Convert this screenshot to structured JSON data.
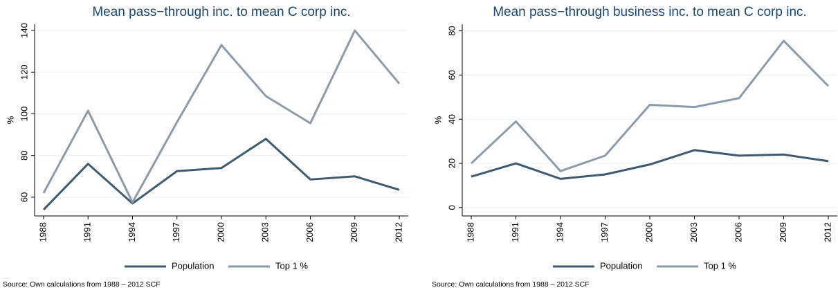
{
  "chart_data": [
    {
      "type": "line",
      "title": "Mean pass−through inc. to mean C corp inc.",
      "ylabel": "%",
      "x": [
        1988,
        1991,
        1994,
        1997,
        2000,
        2003,
        2006,
        2009,
        2012
      ],
      "xlim": [
        1988,
        2012
      ],
      "xticks": [
        1988,
        1991,
        1994,
        1997,
        2000,
        2003,
        2006,
        2009,
        2012
      ],
      "ylim": [
        51,
        143
      ],
      "yticks": [
        60,
        80,
        100,
        120,
        140
      ],
      "grid": true,
      "series": [
        {
          "name": "Population",
          "color": "#3e5a70",
          "values": [
            54,
            76,
            57,
            72.5,
            74,
            88,
            68.5,
            70,
            63.5
          ]
        },
        {
          "name": "Top 1 %",
          "color": "#8a9bab",
          "values": [
            62,
            101.5,
            57.5,
            96,
            133,
            108.5,
            95.5,
            140,
            114.5
          ]
        }
      ],
      "source": "Source: Own calculations from 1988 – 2012 SCF"
    },
    {
      "type": "line",
      "title": "Mean pass−through business inc. to mean C corp inc.",
      "ylabel": "%",
      "x": [
        1988,
        1991,
        1994,
        1997,
        2000,
        2003,
        2006,
        2009,
        2012
      ],
      "xlim": [
        1988,
        2012
      ],
      "xticks": [
        1988,
        1991,
        1994,
        1997,
        2000,
        2003,
        2006,
        2009,
        2012
      ],
      "ylim": [
        -3.8,
        83
      ],
      "yticks": [
        0,
        20,
        40,
        60,
        80
      ],
      "grid": true,
      "series": [
        {
          "name": "Population",
          "color": "#3e5a70",
          "values": [
            14,
            20,
            13,
            15,
            19.5,
            26,
            23.5,
            24,
            21
          ]
        },
        {
          "name": "Top 1 %",
          "color": "#8a9bab",
          "values": [
            20,
            39,
            16.5,
            23.5,
            46.5,
            45.5,
            49.5,
            75.5,
            55
          ]
        }
      ],
      "source": "Source: Own calculations from 1988 – 2012 SCF"
    }
  ]
}
